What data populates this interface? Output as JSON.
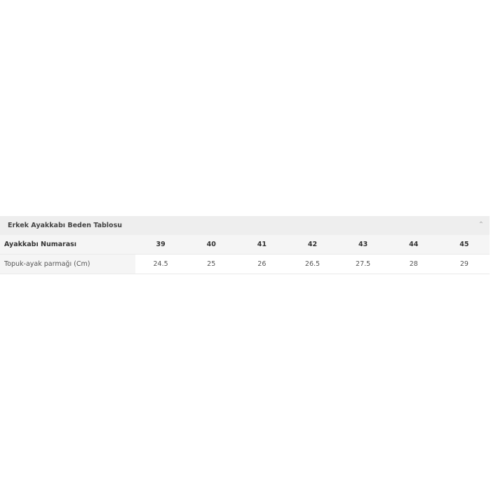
{
  "section": {
    "title": "Erkek Ayakkabı Beden Tablosu",
    "collapse_icon": "chevron-up-icon"
  },
  "table": {
    "rows": [
      {
        "label": "Ayakkabı Numarası",
        "values": [
          "39",
          "40",
          "41",
          "42",
          "43",
          "44",
          "45"
        ]
      },
      {
        "label": "Topuk-ayak parmağı (Cm)",
        "values": [
          "24.5",
          "25",
          "26",
          "26.5",
          "27.5",
          "28",
          "29"
        ]
      }
    ]
  }
}
